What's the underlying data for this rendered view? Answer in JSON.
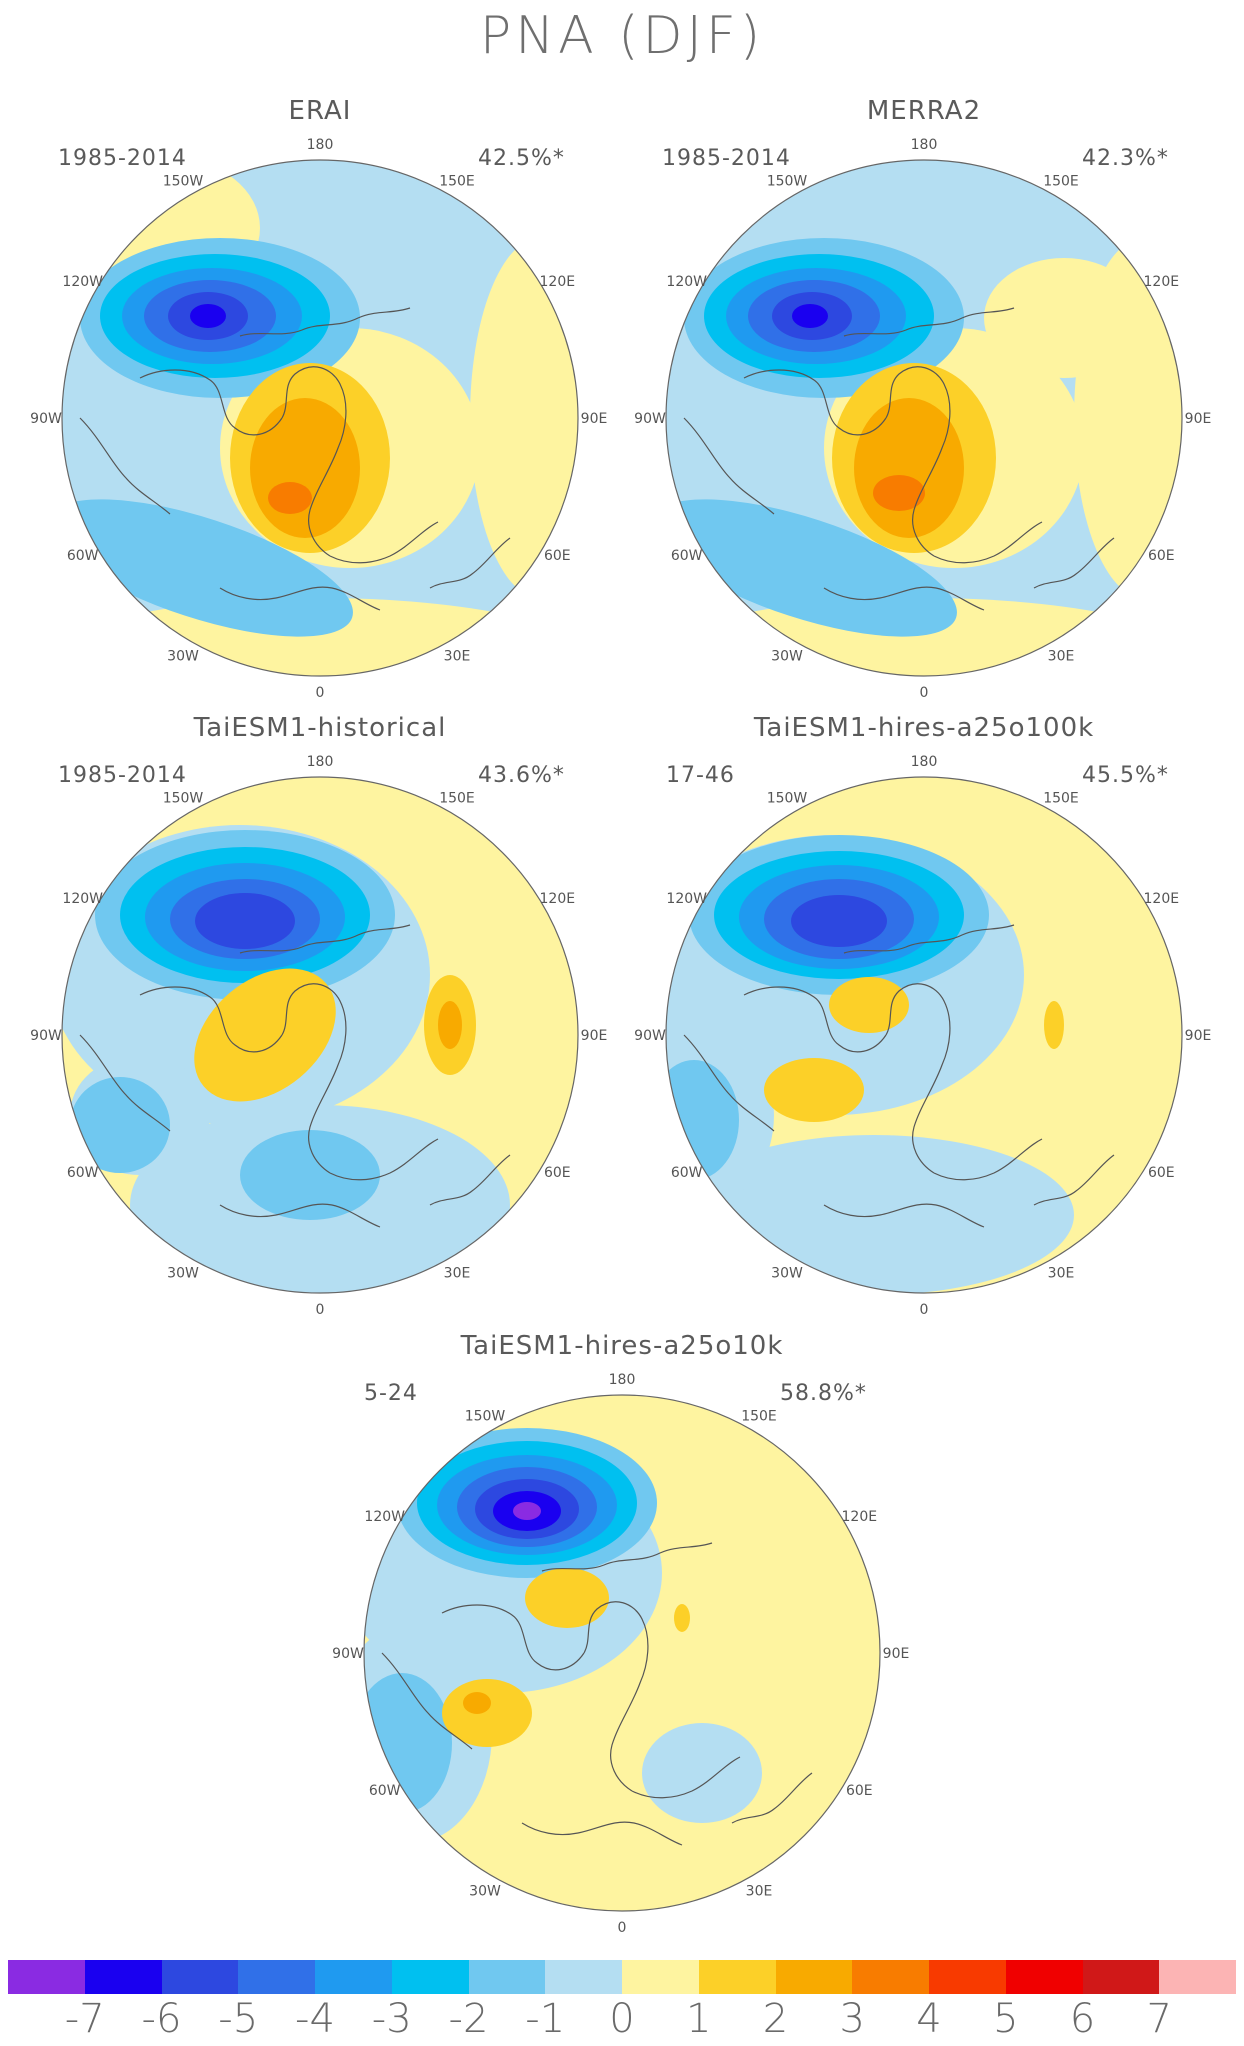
{
  "figure_title": "PNA (DJF)",
  "panels": [
    {
      "id": "erai",
      "title": "ERAI",
      "period": "1985-2014",
      "variance": "42.5%*",
      "lon_labels": {
        "n": "180",
        "nw": "150W",
        "ne": "150E",
        "w2": "120W",
        "e2": "120E",
        "w": "90W",
        "e": "90E",
        "sw2": "60W",
        "se2": "60E",
        "sw": "30W",
        "se": "30E",
        "s": "0"
      }
    },
    {
      "id": "merra2",
      "title": "MERRA2",
      "period": "1985-2014",
      "variance": "42.3%*",
      "lon_labels": {
        "n": "180",
        "nw": "150W",
        "ne": "150E",
        "w2": "120W",
        "e2": "120E",
        "w": "90W",
        "e": "90E",
        "sw2": "60W",
        "se2": "60E",
        "sw": "30W",
        "se": "30E",
        "s": "0"
      }
    },
    {
      "id": "taiesm1-historical",
      "title": "TaiESM1-historical",
      "period": "1985-2014",
      "variance": "43.6%*",
      "lon_labels": {
        "n": "180",
        "nw": "150W",
        "ne": "150E",
        "w2": "120W",
        "e2": "120E",
        "w": "90W",
        "e": "90E",
        "sw2": "60W",
        "se2": "60E",
        "sw": "30W",
        "se": "30E",
        "s": "0"
      }
    },
    {
      "id": "taiesm1-hires-a25o100k",
      "title": "TaiESM1-hires-a25o100k",
      "period": "17-46",
      "variance": "45.5%*",
      "lon_labels": {
        "n": "180",
        "nw": "150W",
        "ne": "150E",
        "w2": "120W",
        "e2": "120E",
        "w": "90W",
        "e": "90E",
        "sw2": "60W",
        "se2": "60E",
        "sw": "30W",
        "se": "30E",
        "s": "0"
      }
    },
    {
      "id": "taiesm1-hires-a25o10k",
      "title": "TaiESM1-hires-a25o10k",
      "period": "5-24",
      "variance": "58.8%*",
      "lon_labels": {
        "n": "180",
        "nw": "150W",
        "ne": "150E",
        "w2": "120W",
        "e2": "120E",
        "w": "90W",
        "e": "90E",
        "sw2": "60W",
        "se2": "60E",
        "sw": "30W",
        "se": "30E",
        "s": "0"
      }
    }
  ],
  "colorbar": {
    "colors": [
      "#8a2be2",
      "#1a00f0",
      "#2d48e0",
      "#3070e8",
      "#1f9af0",
      "#00c0f0",
      "#70c8f0",
      "#b4def2",
      "#fef4a0",
      "#fcd028",
      "#f8aa00",
      "#f87c00",
      "#f83a00",
      "#f00000",
      "#d01818",
      "#fcb4b4"
    ],
    "ticks": [
      "-7",
      "-6",
      "-5",
      "-4",
      "-3",
      "-2",
      "-1",
      "0",
      "1",
      "2",
      "3",
      "4",
      "5",
      "6",
      "7"
    ]
  },
  "palette": {
    "neg_light": "#b4def2",
    "neg_mid": "#70c8f0",
    "neg_deep1": "#00c0f0",
    "neg_deep2": "#1f9af0",
    "neg_deep3": "#3070e8",
    "neg_deep4": "#2d48e0",
    "neg_deep5": "#1a00f0",
    "neg_deep6": "#8a2be2",
    "pos_light": "#fef4a0",
    "pos_mid": "#fcd028",
    "pos_deep1": "#f8aa00",
    "pos_deep2": "#f87c00",
    "coast": "#555555"
  }
}
